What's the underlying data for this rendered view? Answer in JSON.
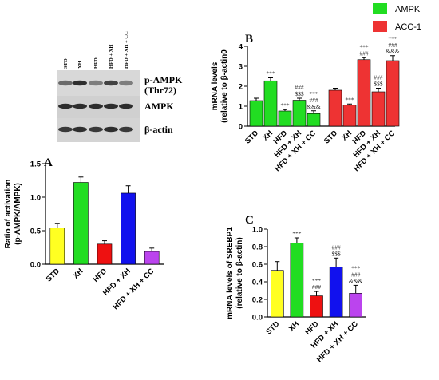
{
  "figure": {
    "blot": {
      "lane_labels": [
        "STD",
        "XH",
        "HFD",
        "HFD + XH",
        "HFD + XH + CC"
      ],
      "rows": [
        {
          "label_line1": "p-AMPK",
          "label_line2": "(Thr72)"
        },
        {
          "label_line1": "AMPK",
          "label_line2": ""
        },
        {
          "label_line1": "β-actin",
          "label_line2": ""
        }
      ]
    },
    "legend_top": [
      {
        "name": "AMPK",
        "color": "#22dd22"
      },
      {
        "name": "ACC-1",
        "color": "#ee3333"
      }
    ]
  },
  "chart_data": [
    {
      "panel": "A",
      "type": "bar",
      "ylabel_line1": "Ratio of activation",
      "ylabel_line2": "(p-AMPK/AMPK)",
      "categories": [
        "STD",
        "XH",
        "HFD",
        "HFD + XH",
        "HFD + XH + CC"
      ],
      "values": [
        0.54,
        1.22,
        0.3,
        1.06,
        0.19
      ],
      "errors": [
        0.07,
        0.08,
        0.05,
        0.11,
        0.05
      ],
      "colors": [
        "#ffff22",
        "#22dd22",
        "#ee1111",
        "#1111ee",
        "#bb44ee"
      ],
      "annotations": [
        "",
        "",
        "",
        "",
        ""
      ],
      "ylim": [
        0,
        1.5
      ],
      "yticks": [
        "0.0",
        "0.5",
        "1.0",
        "1.5"
      ]
    },
    {
      "panel": "B",
      "type": "bar",
      "ylabel_line1": "mRNA levels",
      "ylabel_line2": "(relative to β-actin0",
      "categories": [
        "STD",
        "XH",
        "HFD",
        "HFD + XH",
        "HFD + XH + CC"
      ],
      "series": [
        {
          "name": "AMPK",
          "color": "#22dd22",
          "values": [
            1.28,
            2.27,
            0.76,
            1.3,
            0.63
          ],
          "errors": [
            0.12,
            0.15,
            0.07,
            0.1,
            0.14
          ],
          "annotations": [
            "",
            "***",
            "***",
            "###\n$$$",
            "***\n###\n&&&"
          ]
        },
        {
          "name": "ACC-1",
          "color": "#ee3333",
          "values": [
            1.8,
            1.05,
            3.33,
            1.72,
            3.28
          ],
          "errors": [
            0.1,
            0.06,
            0.1,
            0.18,
            0.25
          ],
          "annotations": [
            "",
            "***",
            "***\n###",
            "###\n$$$",
            "***\n###\n&&&"
          ]
        }
      ],
      "ylim": [
        0,
        4
      ],
      "yticks": [
        "0",
        "1",
        "2",
        "3",
        "4"
      ]
    },
    {
      "panel": "C",
      "type": "bar",
      "ylabel_line1": "mRNA levels of SREBP1",
      "ylabel_line2": "(relative to β-actin)",
      "categories": [
        "STD",
        "XH",
        "HFD",
        "HFD + XH",
        "HFD + XH + CC"
      ],
      "values": [
        0.53,
        0.84,
        0.24,
        0.57,
        0.27
      ],
      "errors": [
        0.1,
        0.06,
        0.05,
        0.1,
        0.09
      ],
      "colors": [
        "#ffff22",
        "#22dd22",
        "#ee1111",
        "#1111ee",
        "#bb44ee"
      ],
      "annotations": [
        "",
        "***",
        "***\n###",
        "###\n$$$",
        "***\n###\n&&&"
      ],
      "ylim": [
        0,
        1.0
      ],
      "yticks": [
        "0.0",
        "0.2",
        "0.4",
        "0.6",
        "0.8",
        "1.0"
      ]
    }
  ]
}
